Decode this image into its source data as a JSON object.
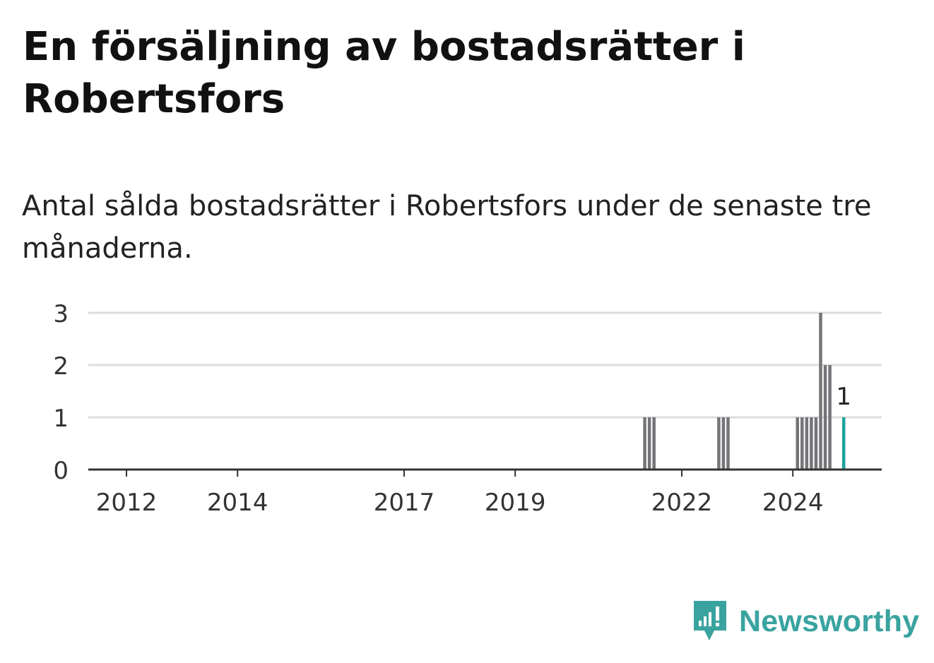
{
  "title": "En försäljning av bostadsrätter i Robertsfors",
  "subtitle": "Antal sålda bostadsrätter i Robertsfors under de senaste tre månaderna.",
  "brand": {
    "name": "Newsworthy",
    "logo_icon": "newsworthy-logo-icon"
  },
  "colors": {
    "bar": "#747479",
    "highlight": "#1ba39c",
    "grid": "#dddddd",
    "axis": "#333333",
    "brand": "#3aa3a0"
  },
  "chart_data": {
    "type": "bar",
    "title": "En försäljning av bostadsrätter i Robertsfors",
    "xlabel": "",
    "ylabel": "",
    "ylim": [
      0,
      3
    ],
    "y_ticks": [
      "0",
      "1",
      "2",
      "3"
    ],
    "x_ticks": [
      "2012",
      "2014",
      "2017",
      "2019",
      "2022",
      "2024"
    ],
    "grid": true,
    "legend": "none",
    "series": [
      {
        "x": [
          "2021-05",
          "2021-06",
          "2021-07",
          "2022-09",
          "2022-10",
          "2022-11",
          "2024-02",
          "2024-03",
          "2024-04",
          "2024-05",
          "2024-06",
          "2024-07",
          "2024-08",
          "2024-09",
          "2024-12"
        ],
        "values": [
          1,
          1,
          1,
          1,
          1,
          1,
          1,
          1,
          1,
          1,
          1,
          3,
          2,
          2,
          1
        ]
      }
    ],
    "highlight": {
      "x": "2024-12",
      "value": 1,
      "label": "1"
    }
  }
}
